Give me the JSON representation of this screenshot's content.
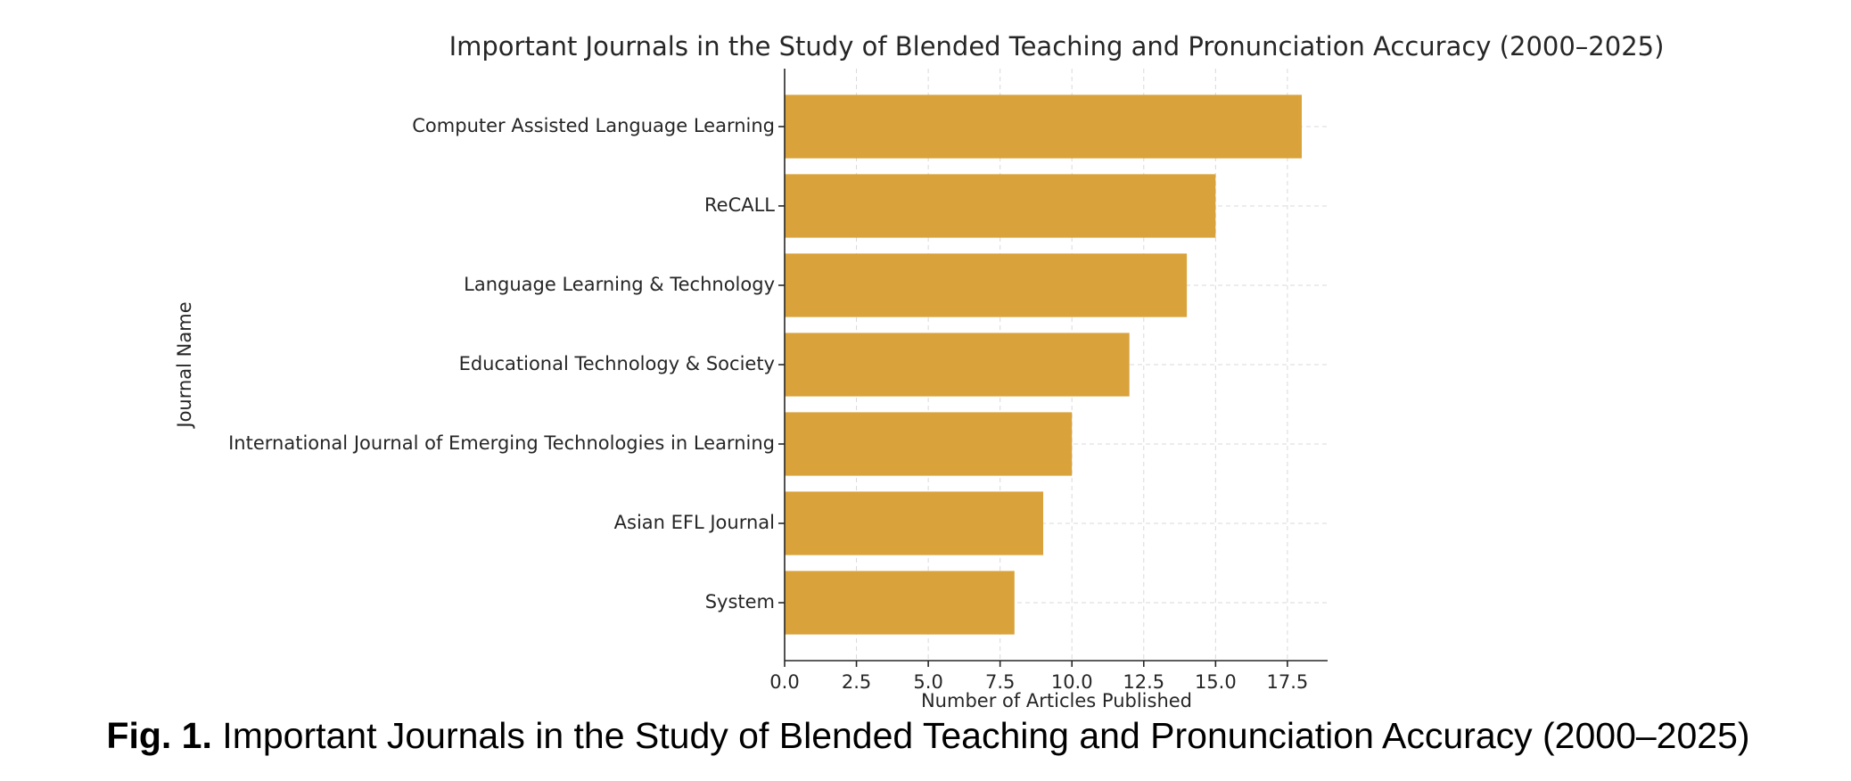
{
  "chart_data": {
    "type": "barh",
    "title": "Important Journals in the Study of Blended Teaching and Pronunciation Accuracy (2000–2025)",
    "x_label": "Number of Articles Published",
    "y_label": "Journal Name",
    "categories": [
      "Computer Assisted Language Learning",
      "ReCALL",
      "Language Learning & Technology",
      "Educational Technology & Society",
      "International Journal of Emerging Technologies in Learning",
      "Asian EFL Journal",
      "System"
    ],
    "values": [
      18,
      15,
      14,
      12,
      10,
      9,
      8
    ],
    "color": "#d9a23a",
    "xlim": [
      0,
      18.9
    ],
    "xticks": [
      {
        "value": 0,
        "label": "0.0"
      },
      2.5,
      {
        "value": 5,
        "label": "5.0"
      },
      7.5,
      {
        "value": 10,
        "label": "10.0"
      },
      12.5,
      {
        "value": 15,
        "label": "15.0"
      },
      17.5
    ],
    "grid": true
  },
  "caption": {
    "label": "Fig. 1.",
    "text": "Important Journals in the Study of Blended Teaching and Pronunciation Accuracy (2000–2025)"
  }
}
